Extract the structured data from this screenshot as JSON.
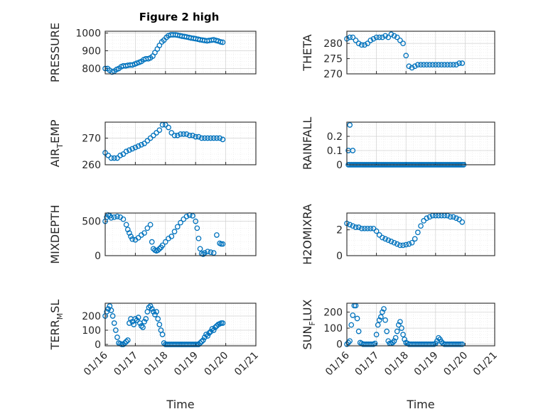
{
  "figure_title": "Figure 2 high",
  "chart_data": [
    {
      "type": "scatter",
      "ylabel": "PRESSURE",
      "ylim": [
        770,
        1010
      ],
      "yticks": [
        800,
        900,
        1000
      ],
      "xlim": [
        0,
        5
      ],
      "x": [
        0.0,
        0.08,
        0.15,
        0.23,
        0.3,
        0.38,
        0.45,
        0.53,
        0.6,
        0.68,
        0.75,
        0.83,
        0.9,
        0.98,
        1.05,
        1.13,
        1.2,
        1.28,
        1.35,
        1.43,
        1.5,
        1.58,
        1.65,
        1.73,
        1.8,
        1.88,
        1.95,
        2.03,
        2.1,
        2.18,
        2.25,
        2.33,
        2.4,
        2.48,
        2.55,
        2.63,
        2.7,
        2.78,
        2.85,
        2.93,
        3.0,
        3.08,
        3.15,
        3.23,
        3.3,
        3.38,
        3.45,
        3.53,
        3.6,
        3.68,
        3.75,
        3.83,
        3.9
      ],
      "y": [
        800,
        800,
        790,
        780,
        785,
        795,
        800,
        810,
        815,
        815,
        818,
        820,
        820,
        825,
        830,
        835,
        840,
        850,
        855,
        855,
        860,
        870,
        890,
        910,
        930,
        950,
        960,
        975,
        985,
        990,
        990,
        990,
        988,
        985,
        982,
        980,
        978,
        975,
        972,
        970,
        968,
        965,
        962,
        960,
        958,
        956,
        958,
        960,
        962,
        958,
        955,
        950,
        948
      ]
    },
    {
      "type": "scatter",
      "ylabel": "THETA",
      "ylim": [
        270,
        284
      ],
      "yticks": [
        270,
        275,
        280
      ],
      "xlim": [
        0,
        5
      ],
      "x": [
        0.0,
        0.1,
        0.2,
        0.3,
        0.4,
        0.5,
        0.6,
        0.7,
        0.8,
        0.9,
        1.0,
        1.1,
        1.2,
        1.3,
        1.4,
        1.5,
        1.6,
        1.7,
        1.8,
        1.9,
        2.0,
        2.1,
        2.2,
        2.3,
        2.4,
        2.5,
        2.6,
        2.7,
        2.8,
        2.9,
        3.0,
        3.1,
        3.2,
        3.3,
        3.4,
        3.5,
        3.6,
        3.7,
        3.8,
        3.9
      ],
      "y": [
        281.5,
        282,
        282,
        281,
        280,
        279.5,
        279.5,
        280,
        281,
        281.5,
        282,
        282,
        282,
        282.5,
        282,
        283,
        282.5,
        282,
        281,
        280,
        276,
        272.5,
        272,
        272.5,
        273,
        273,
        273,
        273,
        273,
        273,
        273,
        273,
        273,
        273,
        273,
        273,
        273,
        273,
        273.5,
        273.5
      ]
    },
    {
      "type": "scatter",
      "ylabel": "AIR_TEMP",
      "ylim": [
        260,
        276
      ],
      "yticks": [
        260,
        270
      ],
      "xlim": [
        0,
        5
      ],
      "x": [
        0.0,
        0.1,
        0.2,
        0.3,
        0.4,
        0.5,
        0.6,
        0.7,
        0.8,
        0.9,
        1.0,
        1.1,
        1.2,
        1.3,
        1.4,
        1.5,
        1.6,
        1.7,
        1.8,
        1.9,
        2.0,
        2.1,
        2.2,
        2.3,
        2.4,
        2.5,
        2.6,
        2.7,
        2.8,
        2.9,
        3.0,
        3.1,
        3.2,
        3.3,
        3.4,
        3.5,
        3.6,
        3.7,
        3.8,
        3.9
      ],
      "y": [
        264.5,
        263.5,
        262.5,
        262.5,
        262.5,
        263.5,
        264,
        265,
        265.5,
        266,
        266.5,
        267,
        267.5,
        268,
        269,
        270,
        271,
        272,
        273,
        275,
        275,
        274,
        272,
        271,
        271,
        271.5,
        271.5,
        271.5,
        271,
        271,
        270.5,
        270.5,
        270,
        270,
        270,
        270,
        270,
        270,
        270,
        269.5
      ]
    },
    {
      "type": "scatter",
      "ylabel": "RAINFALL",
      "ylim": [
        0,
        0.3
      ],
      "yticks": [
        0,
        0.1,
        0.2
      ],
      "xlim": [
        0,
        5
      ],
      "baseline_x_start": 0.05,
      "baseline_x_end": 3.95,
      "baseline_y": 0,
      "x": [
        0.05,
        0.1,
        0.2
      ],
      "y": [
        0.1,
        0.28,
        0.1
      ]
    },
    {
      "type": "scatter",
      "ylabel": "MIXDEPTH",
      "ylim": [
        0,
        620
      ],
      "yticks": [
        0,
        500
      ],
      "xlim": [
        0,
        5
      ],
      "x": [
        0.0,
        0.05,
        0.1,
        0.15,
        0.2,
        0.3,
        0.4,
        0.5,
        0.6,
        0.7,
        0.75,
        0.8,
        0.85,
        0.9,
        1.0,
        1.1,
        1.2,
        1.3,
        1.4,
        1.5,
        1.55,
        1.6,
        1.65,
        1.7,
        1.75,
        1.8,
        1.85,
        1.9,
        2.0,
        2.1,
        2.2,
        2.3,
        2.4,
        2.5,
        2.6,
        2.7,
        2.8,
        2.9,
        3.0,
        3.05,
        3.1,
        3.15,
        3.2,
        3.25,
        3.3,
        3.4,
        3.5,
        3.6,
        3.7,
        3.8,
        3.85,
        3.9
      ],
      "y": [
        500,
        560,
        590,
        580,
        550,
        560,
        570,
        560,
        530,
        450,
        380,
        330,
        280,
        240,
        230,
        260,
        300,
        330,
        400,
        450,
        200,
        100,
        80,
        70,
        80,
        100,
        120,
        150,
        200,
        250,
        280,
        350,
        420,
        480,
        530,
        570,
        590,
        580,
        500,
        400,
        250,
        100,
        30,
        20,
        40,
        60,
        50,
        40,
        300,
        180,
        170,
        170
      ]
    },
    {
      "type": "scatter",
      "ylabel": "H2OMIXRA",
      "ylim": [
        0,
        3.3
      ],
      "yticks": [
        0,
        2
      ],
      "xlim": [
        0,
        5
      ],
      "x": [
        0.0,
        0.1,
        0.2,
        0.3,
        0.4,
        0.5,
        0.6,
        0.7,
        0.8,
        0.9,
        1.0,
        1.1,
        1.2,
        1.3,
        1.4,
        1.5,
        1.6,
        1.7,
        1.8,
        1.9,
        2.0,
        2.1,
        2.2,
        2.3,
        2.4,
        2.5,
        2.6,
        2.7,
        2.8,
        2.9,
        3.0,
        3.1,
        3.2,
        3.3,
        3.4,
        3.5,
        3.6,
        3.7,
        3.8,
        3.9
      ],
      "y": [
        2.5,
        2.4,
        2.3,
        2.2,
        2.2,
        2.1,
        2.1,
        2.1,
        2.1,
        2.1,
        1.9,
        1.6,
        1.4,
        1.3,
        1.2,
        1.1,
        1.0,
        0.9,
        0.8,
        0.8,
        0.85,
        0.9,
        1.0,
        1.3,
        1.8,
        2.3,
        2.7,
        2.9,
        3.0,
        3.1,
        3.1,
        3.1,
        3.1,
        3.1,
        3.1,
        3.0,
        3.0,
        2.9,
        2.8,
        2.6
      ]
    },
    {
      "type": "scatter",
      "ylabel": "TERR_MSL",
      "ylim": [
        -10,
        290
      ],
      "yticks": [
        0,
        100,
        200
      ],
      "xlim": [
        0,
        5
      ],
      "x": [
        0.0,
        0.05,
        0.1,
        0.15,
        0.2,
        0.25,
        0.3,
        0.35,
        0.4,
        0.45,
        0.5,
        0.55,
        0.6,
        0.65,
        0.7,
        0.75,
        0.8,
        0.85,
        0.9,
        0.95,
        1.0,
        1.05,
        1.1,
        1.15,
        1.2,
        1.25,
        1.3,
        1.35,
        1.4,
        1.45,
        1.5,
        1.55,
        1.6,
        1.65,
        1.7,
        1.75,
        1.8,
        1.85,
        1.9,
        1.95,
        2.0,
        2.05,
        2.1,
        2.15,
        2.2,
        2.25,
        2.3,
        2.35,
        2.4,
        2.45,
        2.5,
        2.55,
        2.6,
        2.65,
        2.7,
        2.75,
        2.8,
        2.85,
        2.9,
        2.95,
        3.0,
        3.05,
        3.1,
        3.15,
        3.2,
        3.25,
        3.3,
        3.35,
        3.4,
        3.45,
        3.5,
        3.55,
        3.6,
        3.65,
        3.7,
        3.75,
        3.8,
        3.85,
        3.9
      ],
      "y": [
        200,
        230,
        250,
        270,
        240,
        200,
        150,
        100,
        50,
        10,
        5,
        0,
        0,
        10,
        20,
        30,
        150,
        180,
        160,
        140,
        180,
        170,
        190,
        150,
        130,
        120,
        160,
        180,
        230,
        260,
        270,
        250,
        230,
        210,
        230,
        180,
        140,
        100,
        70,
        10,
        0,
        0,
        0,
        0,
        0,
        0,
        0,
        0,
        0,
        0,
        0,
        0,
        0,
        0,
        0,
        0,
        0,
        0,
        0,
        0,
        0,
        0,
        0,
        10,
        20,
        30,
        50,
        70,
        60,
        80,
        90,
        110,
        100,
        120,
        130,
        140,
        145,
        150,
        150
      ]
    },
    {
      "type": "scatter",
      "ylabel": "SUN_FLUX",
      "ylim": [
        -10,
        255
      ],
      "yticks": [
        0,
        100,
        200
      ],
      "xlim": [
        0,
        5
      ],
      "x": [
        0.0,
        0.05,
        0.1,
        0.15,
        0.2,
        0.25,
        0.3,
        0.35,
        0.4,
        0.45,
        0.5,
        0.55,
        0.6,
        0.65,
        0.7,
        0.75,
        0.8,
        0.85,
        0.9,
        0.95,
        1.0,
        1.05,
        1.1,
        1.15,
        1.2,
        1.25,
        1.3,
        1.35,
        1.4,
        1.45,
        1.5,
        1.55,
        1.6,
        1.65,
        1.7,
        1.75,
        1.8,
        1.85,
        1.9,
        1.95,
        2.0,
        2.05,
        2.1,
        2.15,
        2.2,
        2.25,
        2.3,
        2.35,
        2.4,
        2.45,
        2.5,
        2.55,
        2.6,
        2.65,
        2.7,
        2.75,
        2.8,
        2.85,
        2.9,
        2.95,
        3.0,
        3.05,
        3.1,
        3.15,
        3.2,
        3.25,
        3.3,
        3.35,
        3.4,
        3.45,
        3.5,
        3.55,
        3.6,
        3.65,
        3.7,
        3.75,
        3.8,
        3.85,
        3.9
      ],
      "y": [
        0,
        10,
        20,
        120,
        180,
        240,
        240,
        160,
        80,
        10,
        5,
        0,
        0,
        0,
        0,
        0,
        0,
        0,
        0,
        5,
        60,
        120,
        150,
        170,
        200,
        220,
        150,
        80,
        20,
        5,
        5,
        10,
        20,
        40,
        80,
        120,
        140,
        100,
        60,
        30,
        10,
        5,
        0,
        0,
        0,
        0,
        0,
        0,
        0,
        0,
        0,
        0,
        0,
        0,
        0,
        0,
        0,
        0,
        0,
        0,
        5,
        20,
        40,
        30,
        15,
        5,
        0,
        0,
        0,
        0,
        0,
        0,
        0,
        0,
        0,
        0,
        0,
        0,
        0
      ]
    }
  ],
  "ylabels": [
    {
      "main": "PRESSURE",
      "sub": ""
    },
    {
      "main": "THETA",
      "sub": ""
    },
    {
      "main": "AIR",
      "sub": "T",
      "rest": "EMP"
    },
    {
      "main": "RAINFALL",
      "sub": ""
    },
    {
      "main": "MIXDEPTH",
      "sub": ""
    },
    {
      "main": "H2OMIXRA",
      "sub": ""
    },
    {
      "main": "TERR",
      "sub": "M",
      "rest": "SL"
    },
    {
      "main": "SUN",
      "sub": "F",
      "rest": "LUX"
    }
  ],
  "x_ticklabels": [
    "01/16",
    "01/17",
    "01/18",
    "01/19",
    "01/20",
    "01/21"
  ],
  "x_label": "Time",
  "colors": {
    "marker": "#0072BD",
    "axis": "#262626",
    "grid": "#d0d0d0"
  }
}
